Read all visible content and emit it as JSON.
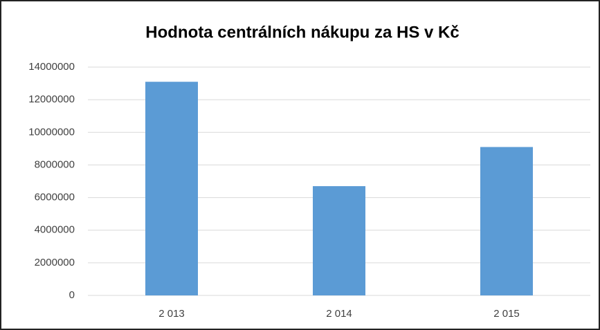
{
  "chart_data": {
    "type": "bar",
    "title": "Hodnota centrálních nákupu za HS v Kč",
    "categories": [
      "2 013",
      "2 014",
      "2 015"
    ],
    "values": [
      13100000,
      6700000,
      9100000
    ],
    "color": "#5b9bd5",
    "ylim": [
      0,
      14000000
    ],
    "yticks": [
      0,
      2000000,
      4000000,
      6000000,
      8000000,
      10000000,
      12000000,
      14000000
    ],
    "grid": true
  }
}
